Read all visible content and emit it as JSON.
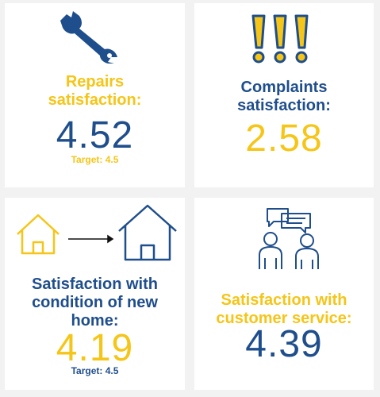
{
  "colors": {
    "navy": "#1f4e8c",
    "yellow": "#f5c518"
  },
  "cards": [
    {
      "icon": "wrench-icon",
      "label_line1": "Repairs",
      "label_line2": "satisfaction:",
      "value": "4.52",
      "target": "Target: 4.5"
    },
    {
      "icon": "exclamation-marks-icon",
      "label_line1": "Complaints",
      "label_line2": "satisfaction:",
      "value": "2.58"
    },
    {
      "icon": "house-upgrade-icon",
      "label_line1": "Satisfaction with",
      "label_line2": "condition of new",
      "label_line3": "home:",
      "value": "4.19",
      "target": "Target: 4.5"
    },
    {
      "icon": "conversation-icon",
      "label_line1": "Satisfaction with",
      "label_line2": "customer service:",
      "value": "4.39"
    }
  ]
}
